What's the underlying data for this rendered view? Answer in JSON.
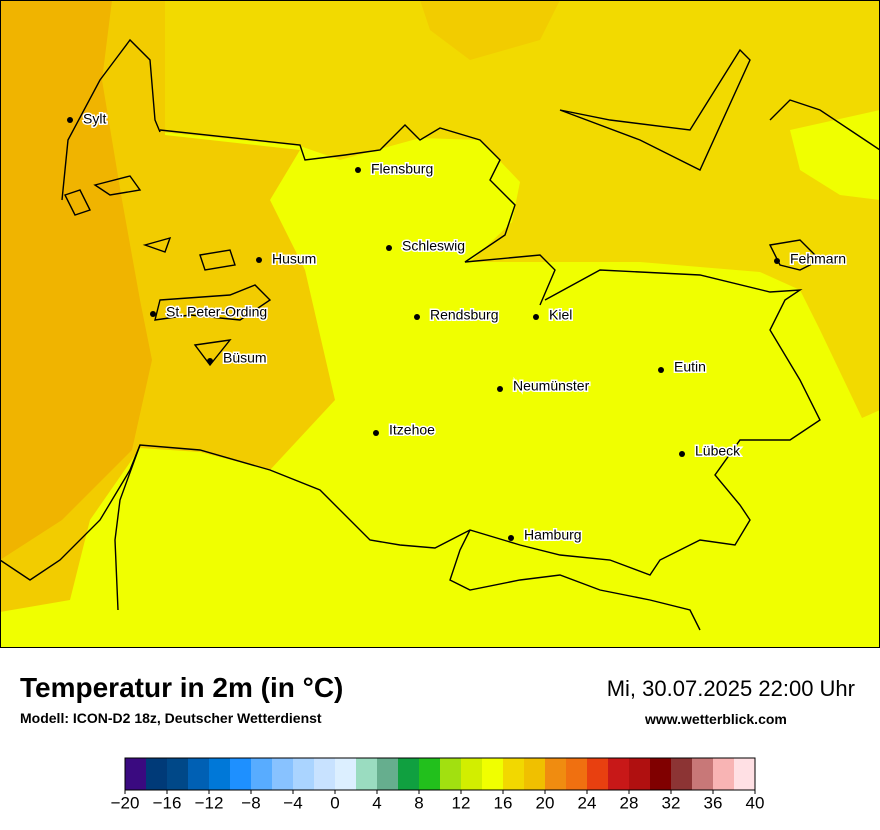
{
  "map": {
    "cities": [
      "Sylt",
      "Flensburg",
      "Schleswig",
      "Husum",
      "St. Peter-Ording",
      "Rendsburg",
      "Kiel",
      "Fehmarn",
      "Büsum",
      "Neumünster",
      "Eutin",
      "Itzehoe",
      "Lübeck",
      "Hamburg"
    ]
  },
  "footer": {
    "title": "Temperatur in 2m (in °C)",
    "subtitle": "Modell: ICON-D2 18z, Deutscher Wetterdienst",
    "datetime": "Mi, 30.07.2025 22:00 Uhr",
    "website": "www.wetterblick.com"
  },
  "colorbar": {
    "range": [
      -20,
      40
    ],
    "colors": [
      "#3a0a80",
      "#003a78",
      "#004888",
      "#0060b4",
      "#0078d8",
      "#1e90ff",
      "#58acff",
      "#88c2ff",
      "#aad4ff",
      "#c8e2ff",
      "#dcefff",
      "#9adcc0",
      "#66ae8e",
      "#10a040",
      "#22c01c",
      "#a2e010",
      "#d2ee00",
      "#f0ff00",
      "#f2d800",
      "#f0c000",
      "#f08c10",
      "#f07010",
      "#e84010",
      "#c81818",
      "#b01010",
      "#800000",
      "#8c3434",
      "#c87878",
      "#f8b4b4",
      "#ffe0e4"
    ],
    "ticks": [
      {
        "value": -20,
        "label": "−20"
      },
      {
        "value": -16,
        "label": "−16"
      },
      {
        "value": -12,
        "label": "−12"
      },
      {
        "value": -8,
        "label": "−8"
      },
      {
        "value": -4,
        "label": "−4"
      },
      0,
      4,
      8,
      12,
      16,
      20,
      24,
      28,
      32,
      36,
      40
    ]
  }
}
